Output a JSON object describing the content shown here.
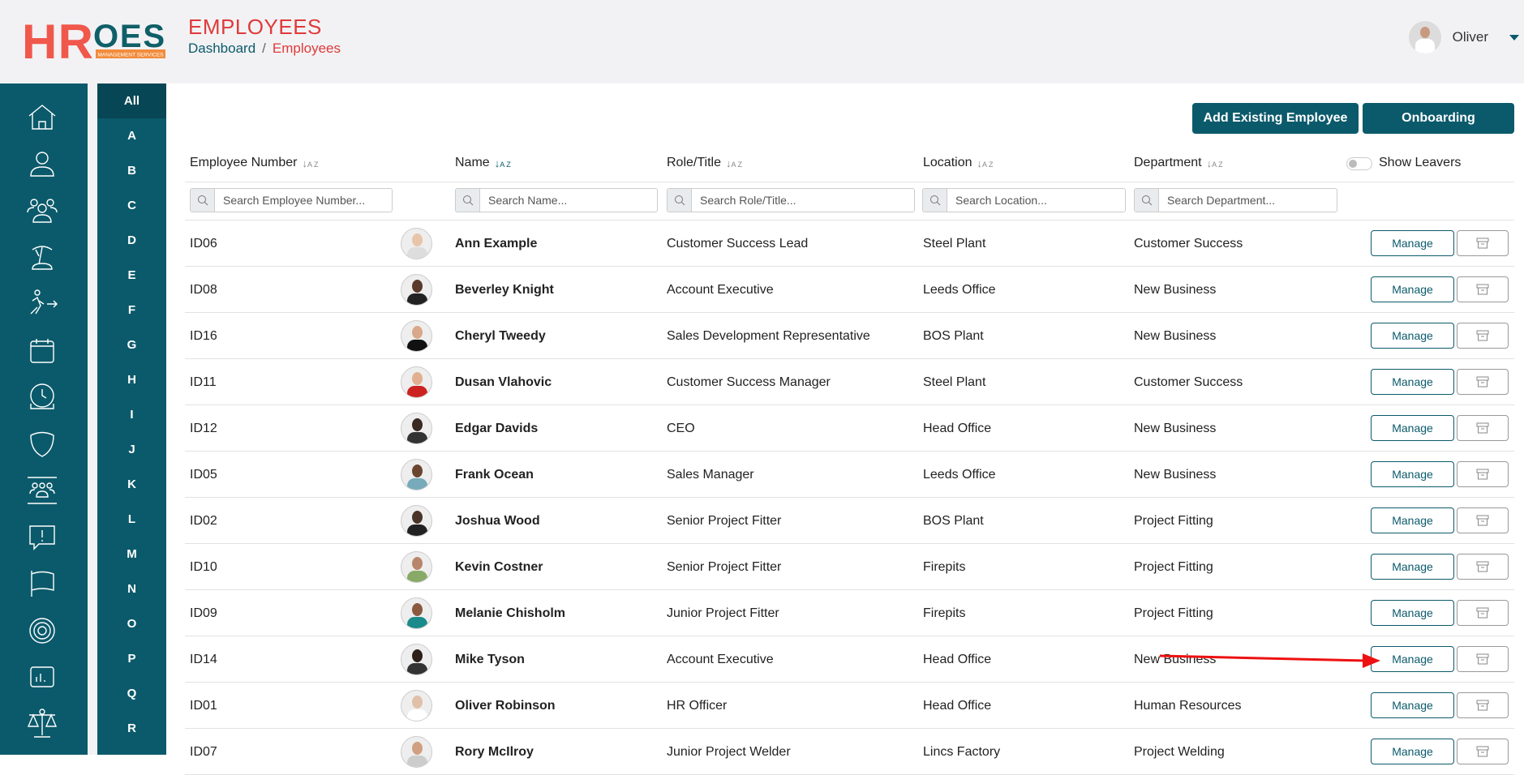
{
  "header": {
    "logo_text": "HROES",
    "logo_sub": "MANAGEMENT SERVICES",
    "title": "EMPLOYEES",
    "breadcrumb": [
      "Dashboard",
      "Employees"
    ],
    "user": "Oliver"
  },
  "sidebar": {
    "icons": [
      "home-icon",
      "user-icon",
      "users-icon",
      "holiday-icon",
      "leaver-icon",
      "calendar-icon",
      "clock-icon",
      "shield-icon",
      "team-icon",
      "alert-message-icon",
      "flag-icon",
      "target-icon",
      "report-icon",
      "scales-icon"
    ]
  },
  "alphabet": [
    "All",
    "A",
    "B",
    "C",
    "D",
    "E",
    "F",
    "G",
    "H",
    "I",
    "J",
    "K",
    "L",
    "M",
    "N",
    "O",
    "P",
    "Q",
    "R"
  ],
  "actions": {
    "add_existing": "Add Existing Employee",
    "onboarding": "Onboarding"
  },
  "columns": [
    "Employee Number",
    "Name",
    "Role/Title",
    "Location",
    "Department"
  ],
  "show_leavers": {
    "label": "Show Leavers",
    "on": false
  },
  "search": [
    "Search Employee Number...",
    "Search Name...",
    "Search Role/Title...",
    "Search Location...",
    "Search Department..."
  ],
  "manage_label": "Manage",
  "rows": [
    {
      "id": "ID06",
      "name": "Ann Example",
      "role": "Customer Success Lead",
      "location": "Steel Plant",
      "dept": "Customer Success"
    },
    {
      "id": "ID08",
      "name": "Beverley Knight",
      "role": "Account Executive",
      "location": "Leeds Office",
      "dept": "New Business"
    },
    {
      "id": "ID16",
      "name": "Cheryl Tweedy",
      "role": "Sales Development Representative",
      "location": "BOS Plant",
      "dept": "New Business"
    },
    {
      "id": "ID11",
      "name": "Dusan Vlahovic",
      "role": "Customer Success Manager",
      "location": "Steel Plant",
      "dept": "Customer Success"
    },
    {
      "id": "ID12",
      "name": "Edgar Davids",
      "role": "CEO",
      "location": "Head Office",
      "dept": "New Business"
    },
    {
      "id": "ID05",
      "name": "Frank Ocean",
      "role": "Sales Manager",
      "location": "Leeds Office",
      "dept": "New Business"
    },
    {
      "id": "ID02",
      "name": "Joshua Wood",
      "role": "Senior Project Fitter",
      "location": "BOS Plant",
      "dept": "Project Fitting"
    },
    {
      "id": "ID10",
      "name": "Kevin Costner",
      "role": "Senior Project Fitter",
      "location": "Firepits",
      "dept": "Project Fitting"
    },
    {
      "id": "ID09",
      "name": "Melanie Chisholm",
      "role": "Junior Project Fitter",
      "location": "Firepits",
      "dept": "Project Fitting"
    },
    {
      "id": "ID14",
      "name": "Mike Tyson",
      "role": "Account Executive",
      "location": "Head Office",
      "dept": "New Business"
    },
    {
      "id": "ID01",
      "name": "Oliver Robinson",
      "role": "HR Officer",
      "location": "Head Office",
      "dept": "Human Resources"
    },
    {
      "id": "ID07",
      "name": "Rory McIlroy",
      "role": "Junior Project Welder",
      "location": "Lincs Factory",
      "dept": "Project Welding"
    }
  ],
  "colors": {
    "primary": "#0b5a6b",
    "accent": "#e03a3a",
    "logo_orange": "#f28c3c",
    "annotation_arrow": "#ee1111"
  }
}
